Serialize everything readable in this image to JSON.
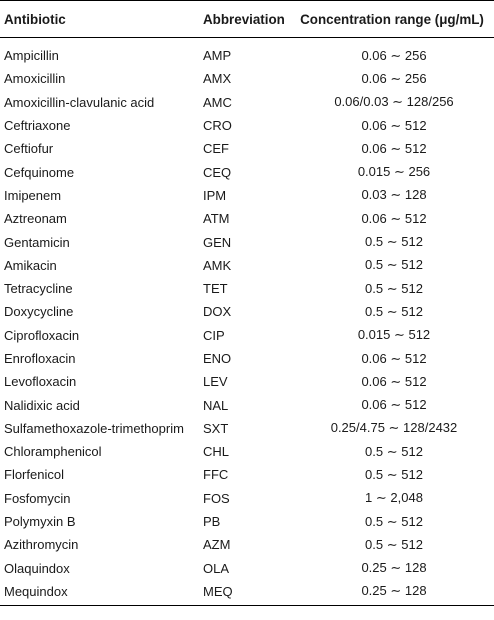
{
  "table": {
    "headers": [
      "Antibiotic",
      "Abbreviation",
      "Concentration range (μg/mL)"
    ],
    "rows": [
      [
        "Ampicillin",
        "AMP",
        "0.06 ∼ 256"
      ],
      [
        "Amoxicillin",
        "AMX",
        "0.06 ∼ 256"
      ],
      [
        "Amoxicillin-clavulanic acid",
        "AMC",
        "0.06/0.03 ∼ 128/256"
      ],
      [
        "Ceftriaxone",
        "CRO",
        "0.06 ∼ 512"
      ],
      [
        "Ceftiofur",
        "CEF",
        "0.06 ∼ 512"
      ],
      [
        "Cefquinome",
        "CEQ",
        "0.015 ∼ 256"
      ],
      [
        "Imipenem",
        "IPM",
        "0.03 ∼ 128"
      ],
      [
        "Aztreonam",
        "ATM",
        "0.06 ∼ 512"
      ],
      [
        "Gentamicin",
        "GEN",
        "0.5 ∼ 512"
      ],
      [
        "Amikacin",
        "AMK",
        "0.5 ∼ 512"
      ],
      [
        "Tetracycline",
        "TET",
        "0.5 ∼ 512"
      ],
      [
        "Doxycycline",
        "DOX",
        "0.5 ∼ 512"
      ],
      [
        "Ciprofloxacin",
        "CIP",
        "0.015 ∼ 512"
      ],
      [
        "Enrofloxacin",
        "ENO",
        "0.06 ∼ 512"
      ],
      [
        "Levofloxacin",
        "LEV",
        "0.06 ∼ 512"
      ],
      [
        "Nalidixic acid",
        "NAL",
        "0.06 ∼ 512"
      ],
      [
        "Sulfamethoxazole-trimethoprim",
        "SXT",
        "0.25/4.75 ∼ 128/2432"
      ],
      [
        "Chloramphenicol",
        "CHL",
        "0.5 ∼ 512"
      ],
      [
        "Florfenicol",
        "FFC",
        "0.5 ∼ 512"
      ],
      [
        "Fosfomycin",
        "FOS",
        "1 ∼ 2,048"
      ],
      [
        "Polymyxin B",
        "PB",
        "0.5 ∼ 512"
      ],
      [
        "Azithromycin",
        "AZM",
        "0.5 ∼ 512"
      ],
      [
        "Olaquindox",
        "OLA",
        "0.25 ∼ 128"
      ],
      [
        "Mequindox",
        "MEQ",
        "0.25 ∼ 128"
      ]
    ]
  }
}
